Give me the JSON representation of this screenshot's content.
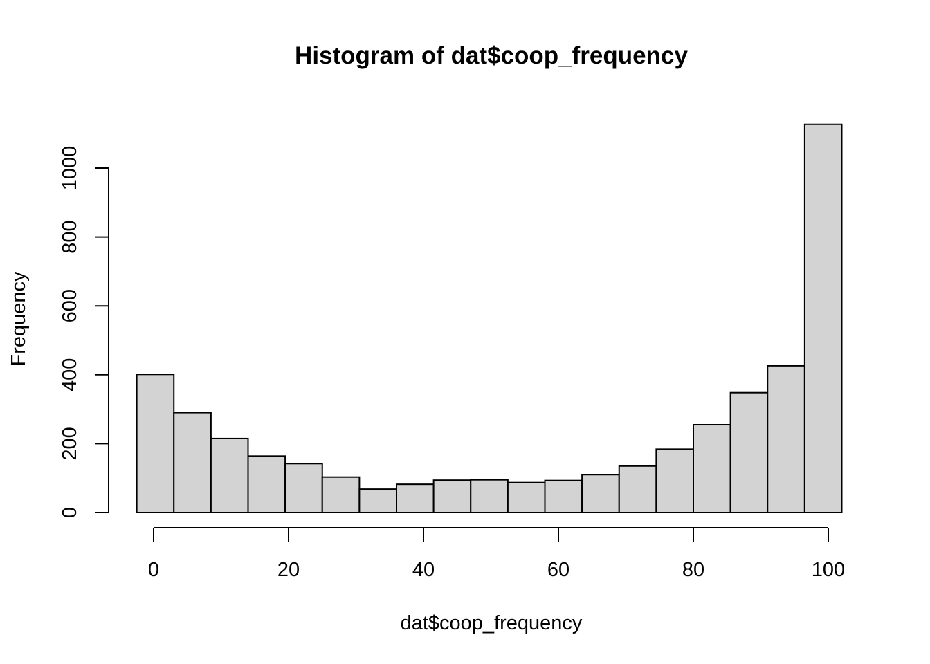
{
  "chart_data": {
    "type": "bar",
    "title": "Histogram of dat$coop_frequency",
    "xlabel": "dat$coop_frequency",
    "ylabel": "Frequency",
    "bins": [
      {
        "start": -2.5,
        "end": 3.0,
        "count": 401
      },
      {
        "start": 3.0,
        "end": 8.5,
        "count": 290
      },
      {
        "start": 8.5,
        "end": 14.0,
        "count": 215
      },
      {
        "start": 14.0,
        "end": 19.5,
        "count": 164
      },
      {
        "start": 19.5,
        "end": 25.0,
        "count": 142
      },
      {
        "start": 25.0,
        "end": 30.5,
        "count": 103
      },
      {
        "start": 30.5,
        "end": 36.0,
        "count": 68
      },
      {
        "start": 36.0,
        "end": 41.5,
        "count": 82
      },
      {
        "start": 41.5,
        "end": 47.0,
        "count": 94
      },
      {
        "start": 47.0,
        "end": 52.5,
        "count": 95
      },
      {
        "start": 52.5,
        "end": 58.0,
        "count": 87
      },
      {
        "start": 58.0,
        "end": 63.5,
        "count": 93
      },
      {
        "start": 63.5,
        "end": 69.0,
        "count": 110
      },
      {
        "start": 69.0,
        "end": 74.5,
        "count": 135
      },
      {
        "start": 74.5,
        "end": 80.0,
        "count": 184
      },
      {
        "start": 80.0,
        "end": 85.5,
        "count": 255
      },
      {
        "start": 85.5,
        "end": 91.0,
        "count": 348
      },
      {
        "start": 91.0,
        "end": 96.5,
        "count": 426
      },
      {
        "start": 96.5,
        "end": 102.0,
        "count": 1127
      }
    ],
    "xlim": [
      -2.5,
      102
    ],
    "ylim": [
      0,
      1127
    ],
    "x_ticks": [
      0,
      20,
      40,
      60,
      80,
      100
    ],
    "x_tick_labels": [
      "0",
      "20",
      "40",
      "60",
      "80",
      "100"
    ],
    "y_ticks": [
      0,
      200,
      400,
      600,
      800,
      1000
    ],
    "y_tick_labels": [
      "0",
      "200",
      "400",
      "600",
      "800",
      "1000"
    ],
    "grid": false,
    "legend": "none",
    "bar_fill": "#d3d3d3",
    "bar_stroke": "#000000"
  }
}
